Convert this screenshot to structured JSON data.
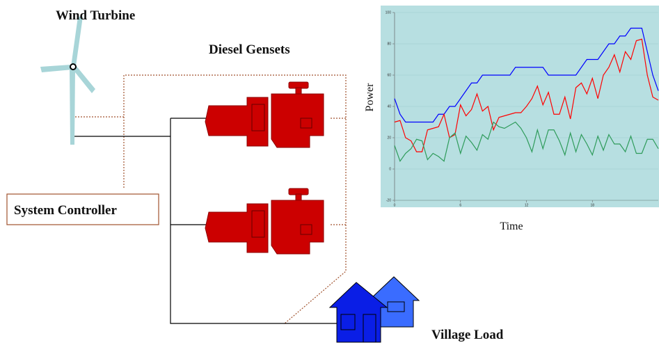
{
  "labels": {
    "wind_turbine": "Wind Turbine",
    "diesel_gensets": "Diesel Gensets",
    "system_controller": "System Controller",
    "village_load": "Village Load"
  },
  "chart_data": {
    "type": "line",
    "xlabel": "Time",
    "ylabel": "Power",
    "xlim": [
      0,
      24
    ],
    "ylim": [
      -20,
      100
    ],
    "xticks": [
      0,
      6,
      12,
      18
    ],
    "yticks": [
      -20,
      0,
      20,
      40,
      60,
      80,
      100
    ],
    "background": "#b7dfe1",
    "x": [
      0,
      0.5,
      1,
      1.5,
      2,
      2.5,
      3,
      3.5,
      4,
      4.5,
      5,
      5.5,
      6,
      6.5,
      7,
      7.5,
      8,
      8.5,
      9,
      9.5,
      10,
      10.5,
      11,
      11.5,
      12,
      12.5,
      13,
      13.5,
      14,
      14.5,
      15,
      15.5,
      16,
      16.5,
      17,
      17.5,
      18,
      18.5,
      19,
      19.5,
      20,
      20.5,
      21,
      21.5,
      22,
      22.5,
      23,
      23.5,
      24
    ],
    "series": [
      {
        "color": "#0000ff",
        "values": [
          45,
          35,
          30,
          30,
          30,
          30,
          30,
          30,
          35,
          35,
          40,
          40,
          45,
          50,
          55,
          55,
          60,
          60,
          60,
          60,
          60,
          60,
          65,
          65,
          65,
          65,
          65,
          65,
          60,
          60,
          60,
          60,
          60,
          60,
          65,
          70,
          70,
          70,
          75,
          80,
          80,
          85,
          85,
          90,
          90,
          90,
          75,
          60,
          50
        ]
      },
      {
        "color": "#ff0000",
        "values": [
          30,
          31,
          20,
          18,
          11,
          11,
          25,
          26,
          27,
          35,
          20,
          22,
          41,
          34,
          38,
          48,
          37,
          40,
          25,
          33,
          34,
          35,
          36,
          36,
          40,
          45,
          53,
          41,
          49,
          35,
          35,
          46,
          32,
          52,
          55,
          48,
          58,
          45,
          60,
          65,
          73,
          62,
          75,
          70,
          82,
          83,
          60,
          46,
          44
        ]
      },
      {
        "color": "#2e9b5a",
        "values": [
          15,
          5,
          10,
          13,
          19,
          18,
          6,
          10,
          8,
          5,
          20,
          23,
          10,
          21,
          17,
          12,
          22,
          19,
          30,
          27,
          26,
          28,
          30,
          26,
          20,
          11,
          25,
          13,
          25,
          25,
          18,
          9,
          23,
          11,
          22,
          16,
          9,
          21,
          12,
          22,
          16,
          16,
          11,
          21,
          10,
          10,
          19,
          19,
          13
        ]
      }
    ]
  }
}
